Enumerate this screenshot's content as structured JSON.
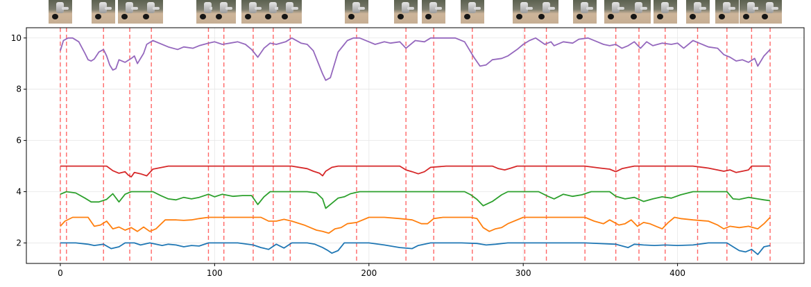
{
  "chart_data": {
    "type": "line",
    "title": "",
    "xlabel": "",
    "ylabel": "",
    "xlim": [
      -22,
      482
    ],
    "ylim": [
      1.2,
      10.4
    ],
    "xticks": [
      0,
      100,
      200,
      300,
      400
    ],
    "yticks": [
      2,
      4,
      6,
      8,
      10
    ],
    "grid": true,
    "legend": "none",
    "colors": [
      "#1f77b4",
      "#ff7f0e",
      "#2ca02c",
      "#d62728",
      "#9467bd"
    ],
    "vline_color": "#ff6666",
    "vlines": [
      0,
      4,
      28,
      45,
      59,
      96,
      106,
      125,
      138,
      149,
      192,
      224,
      242,
      267,
      301,
      315,
      340,
      360,
      375,
      392,
      413,
      432,
      448,
      460
    ],
    "series": [
      {
        "x": [
          0,
          10,
          18,
          22,
          28,
          33,
          38,
          42,
          48,
          52,
          58,
          62,
          66,
          70,
          75,
          80,
          85,
          90,
          96,
          105,
          115,
          125,
          130,
          135,
          140,
          145,
          150,
          160,
          165,
          170,
          173,
          176,
          180,
          184,
          188,
          192,
          200,
          210,
          220,
          228,
          232,
          236,
          240,
          245,
          260,
          270,
          276,
          282,
          290,
          300,
          320,
          340,
          360,
          368,
          372,
          378,
          385,
          392,
          400,
          410,
          420,
          432,
          436,
          440,
          444,
          448,
          452,
          456,
          460
        ],
        "y": [
          2.0,
          2.0,
          1.95,
          1.9,
          1.95,
          1.78,
          1.85,
          2.0,
          2.0,
          1.92,
          2.0,
          1.95,
          1.9,
          1.95,
          1.92,
          1.85,
          1.9,
          1.88,
          2.0,
          2.0,
          2.0,
          1.92,
          1.82,
          1.75,
          1.95,
          1.8,
          2.0,
          2.0,
          1.95,
          1.82,
          1.72,
          1.6,
          1.7,
          2.0,
          2.0,
          2.0,
          2.0,
          1.92,
          1.82,
          1.78,
          1.9,
          1.95,
          2.0,
          2.0,
          2.0,
          1.98,
          1.92,
          1.95,
          2.0,
          2.0,
          2.0,
          2.0,
          1.95,
          1.82,
          1.95,
          1.92,
          1.9,
          1.92,
          1.9,
          1.92,
          2.0,
          2.0,
          1.85,
          1.7,
          1.65,
          1.75,
          1.55,
          1.85,
          1.9
        ]
      },
      {
        "x": [
          0,
          3,
          8,
          12,
          18,
          22,
          26,
          30,
          34,
          38,
          42,
          46,
          50,
          54,
          58,
          62,
          68,
          75,
          80,
          85,
          90,
          96,
          110,
          125,
          130,
          135,
          140,
          145,
          150,
          158,
          162,
          166,
          170,
          174,
          178,
          182,
          186,
          192,
          200,
          210,
          220,
          228,
          234,
          238,
          242,
          248,
          260,
          266,
          270,
          274,
          278,
          282,
          286,
          290,
          300,
          320,
          340,
          346,
          352,
          356,
          362,
          366,
          370,
          374,
          378,
          382,
          386,
          390,
          394,
          398,
          402,
          410,
          420,
          426,
          430,
          434,
          440,
          446,
          452,
          456,
          460
        ],
        "y": [
          2.65,
          2.85,
          3.0,
          3.0,
          3.0,
          2.65,
          2.7,
          2.85,
          2.55,
          2.62,
          2.5,
          2.6,
          2.45,
          2.62,
          2.45,
          2.55,
          2.9,
          2.9,
          2.88,
          2.9,
          2.95,
          3.0,
          3.0,
          3.0,
          3.0,
          2.85,
          2.85,
          2.92,
          2.85,
          2.7,
          2.6,
          2.5,
          2.45,
          2.38,
          2.55,
          2.6,
          2.75,
          2.8,
          3.0,
          3.0,
          2.95,
          2.9,
          2.75,
          2.75,
          2.95,
          3.0,
          3.0,
          3.0,
          2.95,
          2.6,
          2.45,
          2.55,
          2.6,
          2.75,
          3.0,
          3.0,
          3.0,
          2.85,
          2.75,
          2.9,
          2.7,
          2.75,
          2.9,
          2.65,
          2.8,
          2.75,
          2.65,
          2.55,
          2.8,
          3.0,
          2.95,
          2.9,
          2.85,
          2.7,
          2.55,
          2.65,
          2.6,
          2.65,
          2.55,
          2.75,
          3.0
        ]
      },
      {
        "x": [
          0,
          4,
          10,
          16,
          20,
          25,
          30,
          34,
          38,
          42,
          46,
          50,
          55,
          60,
          65,
          70,
          75,
          80,
          85,
          90,
          96,
          100,
          105,
          112,
          118,
          124,
          128,
          132,
          136,
          140,
          150,
          160,
          166,
          170,
          172,
          176,
          180,
          184,
          188,
          194,
          200,
          210,
          220,
          230,
          240,
          250,
          262,
          266,
          270,
          274,
          280,
          286,
          290,
          300,
          310,
          316,
          320,
          326,
          332,
          338,
          344,
          350,
          356,
          360,
          366,
          372,
          378,
          384,
          390,
          396,
          402,
          410,
          420,
          432,
          436,
          440,
          446,
          452,
          456,
          460
        ],
        "y": [
          3.9,
          4.0,
          3.95,
          3.75,
          3.6,
          3.6,
          3.7,
          3.92,
          3.6,
          3.9,
          4.0,
          4.0,
          4.0,
          4.0,
          3.85,
          3.72,
          3.68,
          3.78,
          3.72,
          3.78,
          3.9,
          3.8,
          3.9,
          3.82,
          3.85,
          3.85,
          3.5,
          3.8,
          4.0,
          4.0,
          4.0,
          4.0,
          3.95,
          3.72,
          3.35,
          3.55,
          3.75,
          3.8,
          3.92,
          4.0,
          4.0,
          4.0,
          4.0,
          4.0,
          4.0,
          4.0,
          4.0,
          3.88,
          3.7,
          3.45,
          3.62,
          3.88,
          4.0,
          4.0,
          4.0,
          3.82,
          3.72,
          3.9,
          3.82,
          3.88,
          4.0,
          4.0,
          4.0,
          3.82,
          3.72,
          3.78,
          3.62,
          3.72,
          3.8,
          3.75,
          3.88,
          4.0,
          4.0,
          4.0,
          3.72,
          3.7,
          3.78,
          3.72,
          3.68,
          3.65
        ]
      },
      {
        "x": [
          0,
          20,
          30,
          34,
          38,
          42,
          44,
          46,
          48,
          52,
          56,
          60,
          70,
          100,
          140,
          150,
          160,
          164,
          168,
          170,
          172,
          176,
          180,
          190,
          220,
          224,
          228,
          232,
          236,
          240,
          250,
          280,
          284,
          288,
          292,
          296,
          300,
          320,
          340,
          350,
          356,
          360,
          364,
          368,
          372,
          380,
          390,
          400,
          410,
          420,
          430,
          434,
          438,
          442,
          446,
          448,
          452,
          460
        ],
        "y": [
          5.0,
          5.0,
          5.0,
          4.82,
          4.72,
          4.78,
          4.65,
          4.58,
          4.75,
          4.7,
          4.62,
          4.88,
          5.0,
          5.0,
          5.0,
          5.0,
          4.9,
          4.8,
          4.72,
          4.62,
          4.8,
          4.95,
          5.0,
          5.0,
          5.0,
          4.85,
          4.78,
          4.7,
          4.78,
          4.95,
          5.0,
          5.0,
          4.9,
          4.85,
          4.92,
          5.0,
          5.0,
          5.0,
          5.0,
          4.92,
          4.88,
          4.78,
          4.9,
          4.95,
          5.0,
          5.0,
          5.0,
          5.0,
          5.0,
          4.92,
          4.8,
          4.85,
          4.75,
          4.8,
          4.85,
          5.0,
          5.0,
          5.0
        ]
      },
      {
        "x": [
          0,
          2,
          5,
          8,
          12,
          16,
          18,
          20,
          22,
          25,
          28,
          30,
          32,
          34,
          36,
          38,
          42,
          46,
          48,
          50,
          54,
          56,
          60,
          70,
          76,
          80,
          86,
          90,
          96,
          100,
          105,
          110,
          115,
          120,
          124,
          128,
          132,
          136,
          140,
          146,
          150,
          156,
          160,
          164,
          170,
          172,
          175,
          180,
          184,
          186,
          190,
          194,
          200,
          204,
          210,
          214,
          220,
          224,
          230,
          236,
          240,
          246,
          252,
          256,
          262,
          268,
          272,
          276,
          280,
          286,
          290,
          296,
          300,
          304,
          308,
          314,
          318,
          320,
          326,
          332,
          336,
          342,
          348,
          352,
          356,
          360,
          364,
          368,
          372,
          376,
          380,
          384,
          390,
          396,
          400,
          404,
          410,
          414,
          420,
          426,
          430,
          434,
          438,
          442,
          446,
          450,
          452,
          456,
          460
        ],
        "y": [
          9.5,
          9.9,
          10.0,
          10.0,
          9.85,
          9.4,
          9.15,
          9.1,
          9.18,
          9.45,
          9.55,
          9.3,
          8.95,
          8.75,
          8.8,
          9.15,
          9.05,
          9.2,
          9.3,
          9.0,
          9.4,
          9.75,
          9.9,
          9.65,
          9.55,
          9.65,
          9.6,
          9.7,
          9.8,
          9.85,
          9.75,
          9.8,
          9.85,
          9.75,
          9.55,
          9.25,
          9.6,
          9.8,
          9.75,
          9.85,
          10.0,
          9.8,
          9.75,
          9.5,
          8.6,
          8.35,
          8.45,
          9.45,
          9.75,
          9.9,
          10.0,
          10.0,
          9.85,
          9.75,
          9.85,
          9.8,
          9.85,
          9.6,
          9.9,
          9.85,
          10.0,
          10.0,
          10.0,
          10.0,
          9.85,
          9.25,
          8.9,
          8.95,
          9.15,
          9.2,
          9.3,
          9.55,
          9.75,
          9.9,
          10.0,
          9.75,
          9.85,
          9.7,
          9.85,
          9.8,
          9.95,
          10.0,
          9.85,
          9.75,
          9.7,
          9.75,
          9.6,
          9.7,
          9.85,
          9.6,
          9.85,
          9.7,
          9.8,
          9.75,
          9.8,
          9.6,
          9.9,
          9.8,
          9.65,
          9.6,
          9.35,
          9.25,
          9.1,
          9.15,
          9.05,
          9.2,
          8.9,
          9.3,
          9.55
        ]
      }
    ]
  }
}
